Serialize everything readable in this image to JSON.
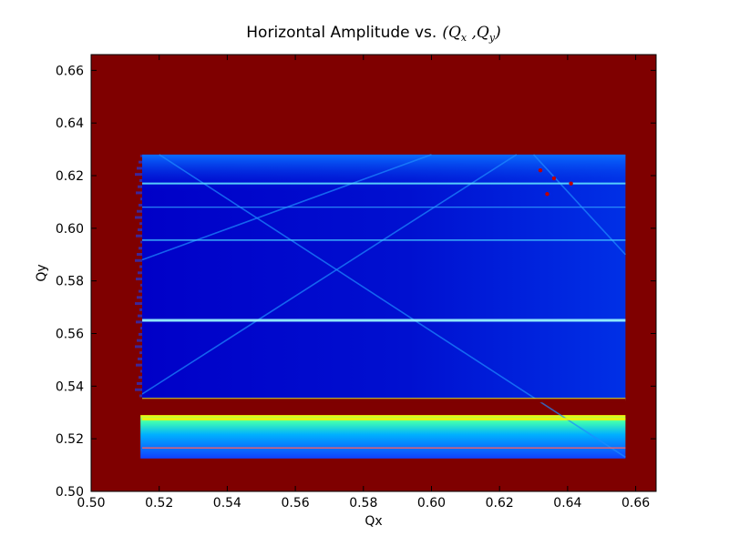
{
  "chart_data": {
    "type": "heatmap",
    "title": "Horizontal Amplitude vs.",
    "title_math": "(Qx ,Qy)",
    "xlabel": "Qx",
    "ylabel": "Qy",
    "xlim": [
      0.5,
      0.666
    ],
    "ylim": [
      0.5,
      0.666
    ],
    "xticks": [
      "0.50",
      "0.52",
      "0.54",
      "0.56",
      "0.58",
      "0.60",
      "0.62",
      "0.64",
      "0.66"
    ],
    "yticks": [
      "0.50",
      "0.52",
      "0.54",
      "0.56",
      "0.58",
      "0.60",
      "0.62",
      "0.64",
      "0.66"
    ],
    "colormap": "jet",
    "background_color": "#7f0000",
    "stable_region": {
      "qx": [
        0.515,
        0.657
      ],
      "qy": [
        0.5125,
        0.628
      ]
    },
    "horizontal_resonances": [
      0.5165,
      0.5275,
      0.535,
      0.565,
      0.5955,
      0.608,
      0.617
    ],
    "gap": {
      "qy": [
        0.529,
        0.5345
      ]
    },
    "diagonal_resonances": [
      {
        "from": [
          0.515,
          0.537
        ],
        "to": [
          0.625,
          0.628
        ]
      },
      {
        "from": [
          0.52,
          0.628
        ],
        "to": [
          0.657,
          0.513
        ]
      },
      {
        "from": [
          0.63,
          0.628
        ],
        "to": [
          0.657,
          0.59
        ]
      },
      {
        "from": [
          0.515,
          0.588
        ],
        "to": [
          0.6,
          0.628
        ]
      }
    ],
    "grid": false,
    "legend": "none"
  }
}
